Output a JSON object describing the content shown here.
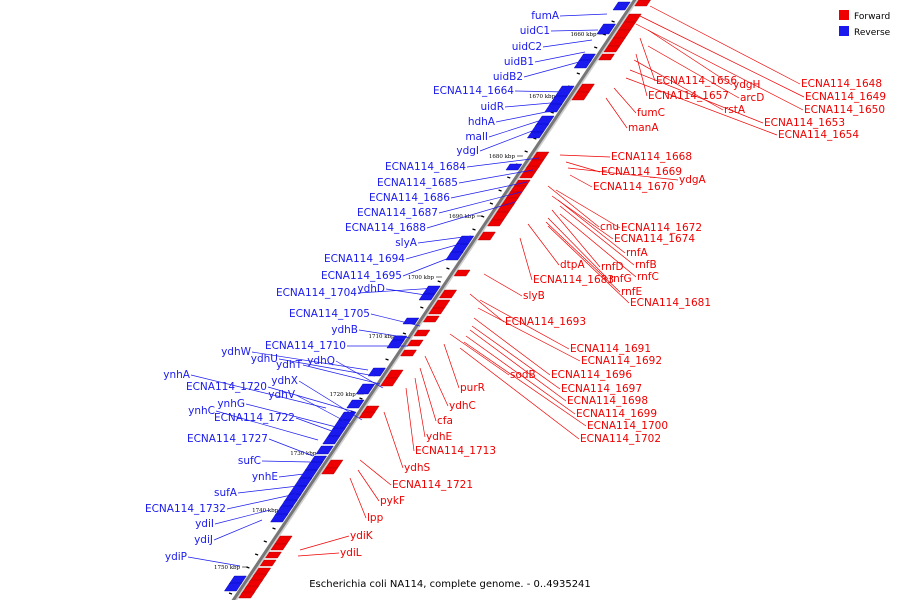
{
  "caption": "Escherichia coli NA114, complete genome. - 0..4935241",
  "legend": [
    {
      "label": "Forward",
      "color": "#ee0000"
    },
    {
      "label": "Reverse",
      "color": "#1a1aee"
    }
  ],
  "colors": {
    "forward": "#ee0000",
    "reverse": "#1a1aee",
    "backbone": "#777777"
  },
  "ticks": [
    "1660 kbp",
    "1670 kbp",
    "1680 kbp",
    "1690 kbp",
    "1700 kbp",
    "1710 kbp",
    "1720 kbp",
    "1730 kbp",
    "1740 kbp",
    "1750 kbp"
  ],
  "reverse_labels": [
    "fumA",
    "uidC1",
    "uidC2",
    "uidB1",
    "uidB2",
    "ECNA114_1664",
    "uidR",
    "hdhA",
    "malI",
    "ydgI",
    "ECNA114_1684",
    "ECNA114_1685",
    "ECNA114_1686",
    "ECNA114_1687",
    "ECNA114_1688",
    "slyA",
    "ECNA114_1694",
    "ECNA114_1695",
    "ECNA114_1704",
    "ydhD",
    "ECNA114_1705",
    "ydhB",
    "ECNA114_1710",
    "ydhW",
    "ydhU",
    "ydhT",
    "ydhQ",
    "ynhA",
    "ECNA114_1720",
    "ydhX",
    "ynhG",
    "ydhV",
    "ynhC",
    "ECNA114_1722",
    "ECNA114_1727",
    "sufC",
    "ynhE",
    "sufA",
    "ECNA114_1732",
    "ydiI",
    "ydiJ",
    "ydiP"
  ],
  "forward_labels": [
    "ECNA114_1648",
    "ECNA114_1649",
    "ECNA114_1650",
    "ECNA114_1656",
    "ydgH",
    "arcD",
    "ECNA114_1657",
    "rstA",
    "ECNA114_1653",
    "ECNA114_1654",
    "fumC",
    "manA",
    "ECNA114_1668",
    "ECNA114_1669",
    "ydgA",
    "ECNA114_1670",
    "cnu",
    "ECNA114_1672",
    "ECNA114_1674",
    "rnfA",
    "rnfB",
    "dtpA",
    "rnfD",
    "rnfC",
    "rnfG",
    "ECNA114_1683",
    "rnfE",
    "ECNA114_1681",
    "slyB",
    "ECNA114_1693",
    "ECNA114_1691",
    "ECNA114_1692",
    "sodB",
    "ECNA114_1696",
    "purR",
    "ECNA114_1697",
    "ECNA114_1698",
    "ydhC",
    "ECNA114_1699",
    "cfa",
    "ECNA114_1700",
    "ydhE",
    "ECNA114_1702",
    "ECNA114_1713",
    "ydhS",
    "ECNA114_1721",
    "pykF",
    "lpp",
    "ydiK",
    "ydiL"
  ]
}
